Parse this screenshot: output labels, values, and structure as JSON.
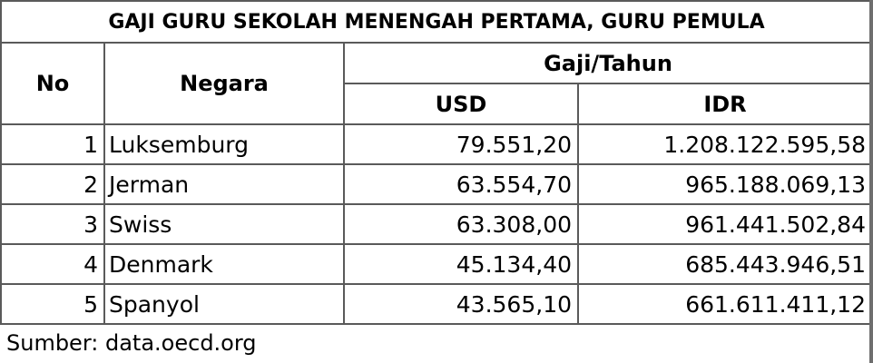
{
  "title": "GAJI GURU SEKOLAH MENENGAH PERTAMA, GURU PEMULA",
  "headers": {
    "no": "No",
    "country": "Negara",
    "salary_group": "Gaji/Tahun",
    "usd": "USD",
    "idr": "IDR"
  },
  "rows": [
    {
      "no": "1",
      "country": "Luksemburg",
      "usd": "79.551,20",
      "idr": "1.208.122.595,58"
    },
    {
      "no": "2",
      "country": "Jerman",
      "usd": "63.554,70",
      "idr": "965.188.069,13"
    },
    {
      "no": "3",
      "country": "Swiss",
      "usd": "63.308,00",
      "idr": "961.441.502,84"
    },
    {
      "no": "4",
      "country": "Denmark",
      "usd": "45.134,40",
      "idr": "685.443.946,51"
    },
    {
      "no": "5",
      "country": "Spanyol",
      "usd": "43.565,10",
      "idr": "661.611.411,12"
    }
  ],
  "source": "Sumber: data.oecd.org"
}
